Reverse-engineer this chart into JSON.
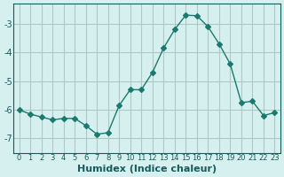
{
  "x": [
    0,
    1,
    2,
    3,
    4,
    5,
    6,
    7,
    8,
    9,
    10,
    11,
    12,
    13,
    14,
    15,
    16,
    17,
    18,
    19,
    20,
    21,
    22,
    23
  ],
  "y": [
    -6.0,
    -6.15,
    -6.25,
    -6.35,
    -6.3,
    -6.3,
    -6.55,
    -6.85,
    -6.8,
    -5.85,
    -5.3,
    -5.3,
    -4.7,
    -3.85,
    -3.2,
    -2.7,
    -2.72,
    -3.1,
    -3.7,
    -4.4,
    -5.75,
    -5.7,
    -6.2,
    -6.1
  ],
  "xlabel": "Humidex (Indice chaleur)",
  "ylim": [
    -7.5,
    -2.3
  ],
  "xlim": [
    -0.5,
    23.5
  ],
  "yticks": [
    -7,
    -6,
    -5,
    -4,
    -3
  ],
  "xticks": [
    0,
    1,
    2,
    3,
    4,
    5,
    6,
    7,
    8,
    9,
    10,
    11,
    12,
    13,
    14,
    15,
    16,
    17,
    18,
    19,
    20,
    21,
    22,
    23
  ],
  "line_color": "#1a7a6e",
  "marker": "D",
  "marker_size": 3,
  "bg_color": "#d6f0f0",
  "grid_color": "#b0c8c8",
  "tick_label_color": "#1a5a5a",
  "xlabel_color": "#1a5a5a",
  "xlabel_fontsize": 8,
  "tick_fontsize": 7
}
